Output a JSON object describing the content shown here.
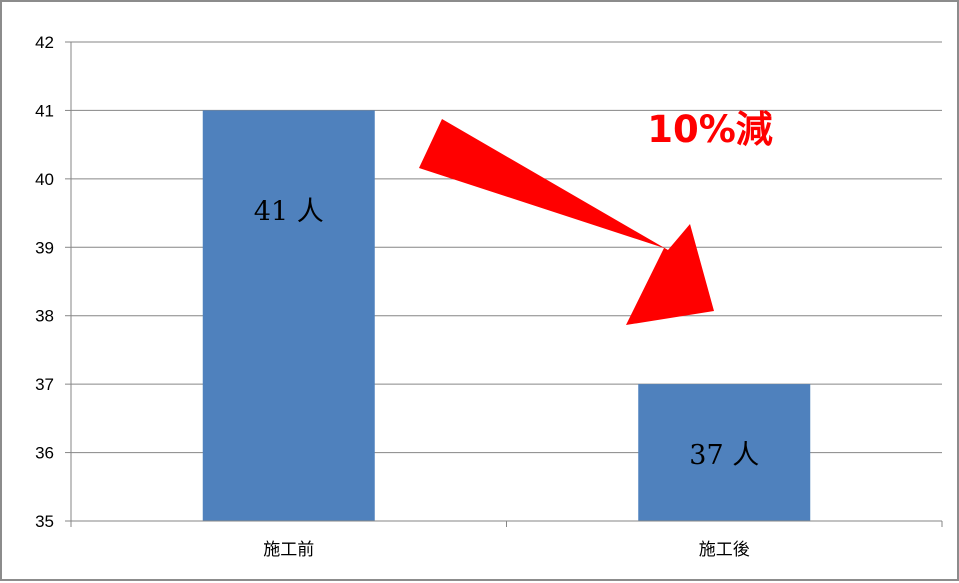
{
  "chart_data": {
    "type": "bar",
    "categories": [
      "施工前",
      "施工後"
    ],
    "values": [
      41,
      37
    ],
    "data_labels": [
      "41 人",
      "37 人"
    ],
    "title": "",
    "xlabel": "",
    "ylabel": "",
    "ylim": [
      35,
      42
    ],
    "yticks": [
      "35",
      "36",
      "37",
      "38",
      "39",
      "40",
      "41",
      "42"
    ],
    "grid": true,
    "legend": "none",
    "bar_color": "#4f81bd",
    "annotation": {
      "text": "10%減",
      "color": "#ff0000",
      "arrow": "down-right",
      "arrow_color": "#ff0000"
    }
  }
}
